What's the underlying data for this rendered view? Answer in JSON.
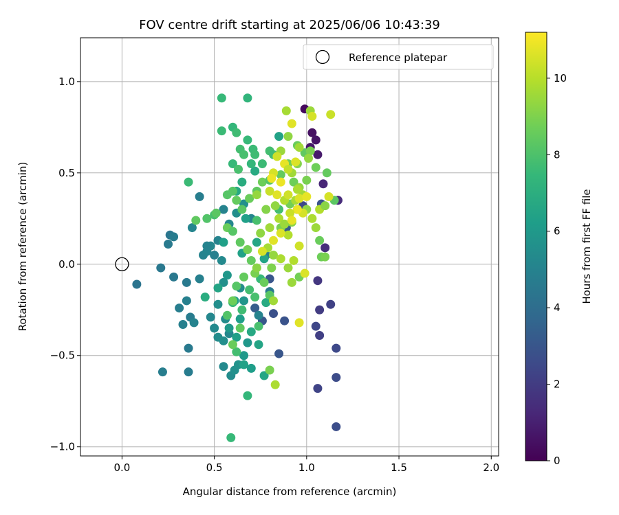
{
  "chart_data": {
    "type": "scatter",
    "title": "FOV centre drift starting at 2025/06/06 10:43:39",
    "xlabel": "Angular distance from reference (arcmin)",
    "ylabel": "Rotation from reference (arcmin)",
    "xlim": [
      -0.225,
      2.04
    ],
    "ylim": [
      -1.05,
      1.24
    ],
    "xticks": [
      "0.0",
      "0.5",
      "1.0",
      "1.5",
      "2.0"
    ],
    "yticks": [
      "−1.0",
      "−0.5",
      "0.0",
      "0.5",
      "1.0"
    ],
    "grid": true,
    "legend": {
      "position": "top-right",
      "entries": [
        "Reference platepar"
      ]
    },
    "reference_point": {
      "x": 0.0,
      "y": 0.0
    },
    "colorbar": {
      "label": "Hours from first FF file",
      "range": [
        0,
        11.2
      ],
      "ticks": [
        "0",
        "2",
        "4",
        "6",
        "8",
        "10"
      ],
      "colormap": "viridis",
      "stops": [
        "#440154",
        "#482878",
        "#3e4989",
        "#31688e",
        "#26828e",
        "#1f9e89",
        "#35b779",
        "#6ece58",
        "#b5de2b",
        "#fde725"
      ]
    },
    "series": [
      {
        "points": [
          [
            0.99,
            0.85,
            0.3
          ],
          [
            1.03,
            0.72,
            0.5
          ],
          [
            1.05,
            0.68,
            0.6
          ],
          [
            1.02,
            0.64,
            0.7
          ],
          [
            1.06,
            0.6,
            0.8
          ],
          [
            1.09,
            0.44,
            1.2
          ],
          [
            1.17,
            0.35,
            1.4
          ],
          [
            1.1,
            0.09,
            1.5
          ],
          [
            1.06,
            -0.09,
            1.8
          ],
          [
            1.07,
            -0.25,
            2.0
          ],
          [
            1.13,
            -0.22,
            2.2
          ],
          [
            1.05,
            -0.34,
            2.4
          ],
          [
            1.07,
            -0.39,
            2.1
          ],
          [
            1.16,
            -0.46,
            2.5
          ],
          [
            1.16,
            -0.62,
            2.6
          ],
          [
            1.06,
            -0.68,
            2.3
          ],
          [
            1.16,
            -0.89,
            2.7
          ],
          [
            0.88,
            -0.31,
            2.9
          ],
          [
            0.85,
            -0.49,
            3.0
          ],
          [
            0.82,
            -0.27,
            2.8
          ],
          [
            0.76,
            -0.31,
            3.1
          ],
          [
            0.72,
            -0.24,
            3.3
          ],
          [
            0.8,
            -0.08,
            3.0
          ],
          [
            0.89,
            0.2,
            3.2
          ],
          [
            0.95,
            0.3,
            3.4
          ],
          [
            0.98,
            0.32,
            2.5
          ],
          [
            1.08,
            0.33,
            2.9
          ],
          [
            0.08,
            -0.11,
            4.3
          ],
          [
            0.21,
            -0.02,
            4.5
          ],
          [
            0.25,
            0.11,
            4.6
          ],
          [
            0.26,
            0.16,
            4.4
          ],
          [
            0.28,
            0.15,
            4.7
          ],
          [
            0.22,
            -0.59,
            4.8
          ],
          [
            0.28,
            -0.07,
            4.5
          ],
          [
            0.35,
            -0.1,
            4.6
          ],
          [
            0.35,
            -0.2,
            4.9
          ],
          [
            0.37,
            -0.29,
            4.7
          ],
          [
            0.31,
            -0.24,
            4.8
          ],
          [
            0.33,
            -0.33,
            4.9
          ],
          [
            0.39,
            -0.32,
            5.0
          ],
          [
            0.36,
            -0.46,
            4.6
          ],
          [
            0.36,
            -0.59,
            4.7
          ],
          [
            0.42,
            -0.08,
            4.9
          ],
          [
            0.44,
            0.05,
            5.0
          ],
          [
            0.46,
            0.07,
            5.1
          ],
          [
            0.48,
            0.1,
            5.2
          ],
          [
            0.52,
            0.13,
            5.0
          ],
          [
            0.42,
            0.37,
            4.8
          ],
          [
            0.38,
            0.2,
            5.1
          ],
          [
            0.48,
            -0.29,
            5.2
          ],
          [
            0.5,
            -0.35,
            5.3
          ],
          [
            0.52,
            -0.4,
            5.4
          ],
          [
            0.55,
            -0.42,
            5.5
          ],
          [
            0.55,
            -0.56,
            5.3
          ],
          [
            0.59,
            -0.61,
            5.4
          ],
          [
            0.61,
            -0.58,
            5.6
          ],
          [
            0.58,
            -0.38,
            5.2
          ],
          [
            0.56,
            -0.3,
            5.4
          ],
          [
            0.54,
            0.02,
            5.3
          ],
          [
            0.55,
            0.3,
            5.0
          ],
          [
            0.58,
            0.22,
            5.2
          ],
          [
            0.62,
            0.28,
            5.5
          ],
          [
            0.66,
            0.33,
            5.6
          ],
          [
            0.7,
            0.25,
            5.1
          ],
          [
            0.55,
            -0.1,
            5.6
          ],
          [
            0.52,
            -0.22,
            5.5
          ],
          [
            0.66,
            -0.2,
            5.8
          ],
          [
            0.68,
            -0.43,
            5.9
          ],
          [
            0.66,
            -0.5,
            6.0
          ],
          [
            0.63,
            -0.55,
            5.7
          ],
          [
            0.74,
            -0.28,
            5.0
          ],
          [
            0.8,
            -0.15,
            4.6
          ],
          [
            0.78,
            0.05,
            4.7
          ],
          [
            0.64,
            -0.13,
            5.4
          ],
          [
            0.5,
            0.05,
            4.9
          ],
          [
            0.46,
            0.1,
            5.0
          ],
          [
            0.57,
            -0.06,
            5.9
          ],
          [
            0.61,
            -0.2,
            6.1
          ],
          [
            0.64,
            -0.3,
            6.2
          ],
          [
            0.58,
            -0.35,
            6.0
          ],
          [
            0.62,
            -0.4,
            6.3
          ],
          [
            0.66,
            -0.55,
            6.4
          ],
          [
            0.7,
            -0.57,
            6.2
          ],
          [
            0.74,
            -0.44,
            6.5
          ],
          [
            0.77,
            -0.61,
            6.6
          ],
          [
            0.7,
            -0.37,
            6.7
          ],
          [
            0.78,
            -0.21,
            6.8
          ],
          [
            0.77,
            0.03,
            6.5
          ],
          [
            0.73,
            0.12,
            6.6
          ],
          [
            0.65,
            0.06,
            6.4
          ],
          [
            0.67,
            0.25,
            6.3
          ],
          [
            0.62,
            0.4,
            6.7
          ],
          [
            0.65,
            0.45,
            6.9
          ],
          [
            0.72,
            0.51,
            6.8
          ],
          [
            0.85,
            0.7,
            6.4
          ],
          [
            0.52,
            -0.13,
            6.5
          ],
          [
            0.45,
            -0.18,
            6.9
          ],
          [
            0.55,
            0.12,
            6.3
          ],
          [
            0.54,
            0.91,
            7.5
          ],
          [
            0.68,
            0.91,
            7.3
          ],
          [
            0.54,
            0.73,
            7.6
          ],
          [
            0.6,
            0.75,
            7.4
          ],
          [
            0.62,
            0.72,
            7.7
          ],
          [
            0.68,
            0.68,
            7.5
          ],
          [
            0.64,
            0.63,
            7.8
          ],
          [
            0.71,
            0.63,
            7.6
          ],
          [
            0.72,
            0.6,
            7.7
          ],
          [
            0.66,
            0.6,
            7.9
          ],
          [
            0.7,
            0.55,
            7.4
          ],
          [
            0.76,
            0.55,
            7.6
          ],
          [
            0.8,
            0.62,
            7.8
          ],
          [
            0.82,
            0.6,
            7.7
          ],
          [
            0.6,
            0.55,
            7.5
          ],
          [
            0.63,
            0.52,
            7.9
          ],
          [
            0.36,
            0.45,
            7.6
          ],
          [
            0.68,
            -0.72,
            7.4
          ],
          [
            0.59,
            -0.95,
            7.5
          ],
          [
            0.62,
            -0.48,
            7.8
          ],
          [
            0.74,
            -0.34,
            7.9
          ],
          [
            0.65,
            -0.25,
            7.7
          ],
          [
            0.6,
            -0.21,
            7.6
          ],
          [
            0.72,
            -0.18,
            7.9
          ],
          [
            0.69,
            -0.14,
            7.8
          ],
          [
            0.75,
            -0.08,
            7.5
          ],
          [
            0.73,
            0.24,
            7.9
          ],
          [
            0.85,
            0.3,
            7.8
          ],
          [
            0.5,
            0.27,
            7.9
          ],
          [
            0.6,
            0.4,
            8.2
          ],
          [
            0.62,
            0.35,
            8.5
          ],
          [
            0.65,
            0.3,
            8.3
          ],
          [
            0.69,
            0.36,
            8.6
          ],
          [
            0.73,
            0.4,
            8.4
          ],
          [
            0.76,
            0.45,
            8.7
          ],
          [
            0.8,
            0.46,
            8.2
          ],
          [
            0.86,
            0.49,
            8.5
          ],
          [
            0.9,
            0.55,
            8.8
          ],
          [
            0.95,
            0.65,
            8.6
          ],
          [
            0.99,
            0.61,
            8.4
          ],
          [
            1.02,
            0.62,
            8.9
          ],
          [
            1.05,
            0.53,
            8.7
          ],
          [
            1.11,
            0.5,
            8.5
          ],
          [
            1.15,
            0.35,
            8.3
          ],
          [
            0.46,
            0.25,
            8.1
          ],
          [
            0.51,
            0.28,
            8.3
          ],
          [
            0.57,
            0.2,
            8.6
          ],
          [
            0.6,
            0.18,
            8.2
          ],
          [
            0.64,
            0.12,
            8.4
          ],
          [
            0.68,
            0.08,
            8.8
          ],
          [
            0.7,
            0.02,
            8.5
          ],
          [
            0.72,
            -0.05,
            8.9
          ],
          [
            0.77,
            -0.1,
            8.6
          ],
          [
            0.8,
            -0.17,
            8.3
          ],
          [
            0.62,
            -0.12,
            8.2
          ],
          [
            0.66,
            -0.07,
            8.5
          ],
          [
            0.6,
            -0.2,
            8.7
          ],
          [
            0.57,
            -0.28,
            8.1
          ],
          [
            0.64,
            -0.35,
            8.4
          ],
          [
            0.6,
            -0.44,
            8.6
          ],
          [
            0.8,
            -0.58,
            8.9
          ],
          [
            0.81,
            -0.02,
            9.0
          ],
          [
            0.86,
            0.2,
            8.9
          ],
          [
            0.91,
            0.33,
            8.8
          ],
          [
            0.93,
            0.45,
            8.7
          ],
          [
            1.0,
            0.46,
            8.9
          ],
          [
            1.08,
            0.04,
            8.7
          ],
          [
            1.1,
            0.04,
            8.9
          ],
          [
            1.07,
            0.13,
            8.6
          ],
          [
            0.96,
            -0.07,
            8.8
          ],
          [
            0.4,
            0.24,
            8.4
          ],
          [
            0.57,
            0.38,
            8.2
          ],
          [
            0.73,
            0.38,
            9.4
          ],
          [
            0.78,
            0.3,
            9.1
          ],
          [
            0.8,
            0.2,
            9.6
          ],
          [
            0.83,
            0.32,
            9.3
          ],
          [
            0.85,
            0.25,
            9.8
          ],
          [
            0.88,
            0.22,
            9.5
          ],
          [
            0.9,
            0.16,
            9.9
          ],
          [
            0.92,
            0.23,
            9.2
          ],
          [
            0.94,
            0.35,
            9.7
          ],
          [
            0.96,
            0.42,
            9.4
          ],
          [
            0.98,
            0.38,
            9.6
          ],
          [
            1.0,
            0.3,
            9.3
          ],
          [
            1.03,
            0.25,
            9.8
          ],
          [
            1.05,
            0.2,
            9.5
          ],
          [
            1.07,
            0.3,
            9.9
          ],
          [
            1.1,
            0.32,
            9.2
          ],
          [
            0.88,
            0.35,
            9.9
          ],
          [
            0.92,
            0.5,
            9.6
          ],
          [
            0.86,
            0.62,
            9.5
          ],
          [
            0.9,
            0.7,
            9.3
          ],
          [
            0.96,
            0.64,
            9.6
          ],
          [
            1.01,
            0.58,
            9.4
          ],
          [
            0.89,
            0.84,
            9.7
          ],
          [
            1.02,
            0.84,
            9.5
          ],
          [
            0.95,
            0.41,
            9.8
          ],
          [
            0.75,
            0.17,
            9.3
          ],
          [
            0.79,
            0.09,
            9.7
          ],
          [
            0.82,
            0.05,
            9.4
          ],
          [
            0.86,
            0.03,
            9.8
          ],
          [
            0.9,
            -0.02,
            9.5
          ],
          [
            0.93,
            0.02,
            9.9
          ],
          [
            0.73,
            -0.02,
            9.2
          ],
          [
            0.82,
            -0.2,
            9.6
          ],
          [
            0.92,
            -0.1,
            9.5
          ],
          [
            0.83,
            -0.66,
            9.8
          ],
          [
            0.95,
            0.55,
            9.1
          ],
          [
            1.03,
            0.81,
            10.5
          ],
          [
            1.13,
            0.82,
            10.3
          ],
          [
            0.92,
            0.77,
            10.7
          ],
          [
            0.84,
            0.59,
            10.4
          ],
          [
            0.88,
            0.55,
            10.8
          ],
          [
            0.9,
            0.52,
            10.2
          ],
          [
            0.94,
            0.56,
            10.6
          ],
          [
            0.86,
            0.45,
            10.9
          ],
          [
            0.82,
            0.5,
            10.5
          ],
          [
            0.8,
            0.4,
            10.3
          ],
          [
            0.84,
            0.38,
            10.7
          ],
          [
            0.9,
            0.38,
            10.4
          ],
          [
            0.96,
            0.36,
            10.6
          ],
          [
            1.0,
            0.37,
            10.8
          ],
          [
            0.98,
            0.28,
            10.5
          ],
          [
            0.95,
            0.3,
            10.9
          ],
          [
            0.91,
            0.28,
            10.3
          ],
          [
            0.86,
            0.17,
            10.6
          ],
          [
            0.82,
            0.13,
            10.7
          ],
          [
            0.96,
            0.1,
            10.4
          ],
          [
            0.92,
            0.24,
            10.8
          ],
          [
            0.76,
            0.07,
            10.5
          ],
          [
            0.99,
            -0.05,
            10.6
          ],
          [
            0.96,
            -0.32,
            10.7
          ],
          [
            1.12,
            0.37,
            10.5
          ],
          [
            0.81,
            0.47,
            10.9
          ]
        ]
      }
    ]
  }
}
